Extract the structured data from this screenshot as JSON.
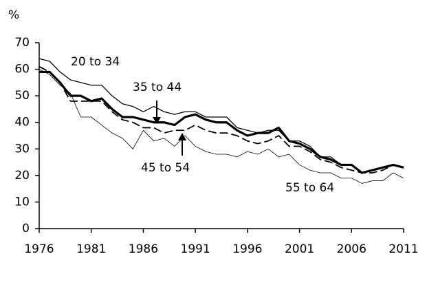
{
  "chart_data": {
    "type": "line",
    "y_label": "%",
    "x": [
      1976,
      1977,
      1978,
      1979,
      1980,
      1981,
      1982,
      1983,
      1984,
      1985,
      1986,
      1987,
      1988,
      1989,
      1990,
      1991,
      1992,
      1993,
      1994,
      1995,
      1996,
      1997,
      1998,
      1999,
      2000,
      2001,
      2002,
      2003,
      2004,
      2005,
      2006,
      2007,
      2008,
      2009,
      2010,
      2011
    ],
    "xlim": [
      1976,
      2011
    ],
    "xticks": [
      1976,
      1981,
      1986,
      1991,
      1996,
      2001,
      2006,
      2011
    ],
    "ylim": [
      0,
      70
    ],
    "yticks": [
      0,
      10,
      20,
      30,
      40,
      50,
      60,
      70
    ],
    "series": [
      {
        "name": "20 to 34",
        "color": "#000000",
        "line_style": "solid",
        "line_width": 1.3,
        "values": [
          64,
          63,
          59,
          56,
          55,
          54,
          54,
          50,
          47,
          46,
          44,
          46,
          44,
          43,
          44,
          44,
          42,
          42,
          42,
          38,
          37,
          36,
          37,
          37,
          33,
          33,
          31,
          27,
          27,
          24,
          24,
          21,
          22,
          23,
          24,
          23
        ]
      },
      {
        "name": "35 to 44",
        "color": "#000000",
        "line_style": "solid",
        "line_width": 3.2,
        "values": [
          59,
          59,
          55,
          50,
          50,
          48,
          49,
          45,
          42,
          42,
          41,
          40,
          40,
          39,
          42,
          43,
          41,
          40,
          40,
          37,
          35,
          36,
          36,
          38,
          33,
          32,
          30,
          27,
          26,
          24,
          24,
          21,
          22,
          23,
          24,
          23
        ]
      },
      {
        "name": "45 to 54",
        "color": "#000000",
        "line_style": "dashed",
        "line_width": 1.8,
        "values": [
          61,
          59,
          55,
          48,
          48,
          48,
          48,
          44,
          41,
          40,
          38,
          38,
          36,
          37,
          37,
          39,
          37,
          36,
          36,
          35,
          33,
          32,
          33,
          35,
          31,
          31,
          29,
          26,
          25,
          23,
          22,
          21,
          21,
          22,
          24,
          23
        ]
      },
      {
        "name": "55 to 64",
        "color": "#000000",
        "line_style": "solid",
        "line_width": 0.8,
        "values": [
          60,
          58,
          54,
          51,
          42,
          42,
          39,
          36,
          34,
          30,
          37,
          33,
          34,
          31,
          35,
          31,
          29,
          28,
          28,
          27,
          29,
          28,
          30,
          27,
          28,
          24,
          22,
          21,
          21,
          19,
          19,
          17,
          18,
          18,
          21,
          19
        ]
      }
    ]
  }
}
